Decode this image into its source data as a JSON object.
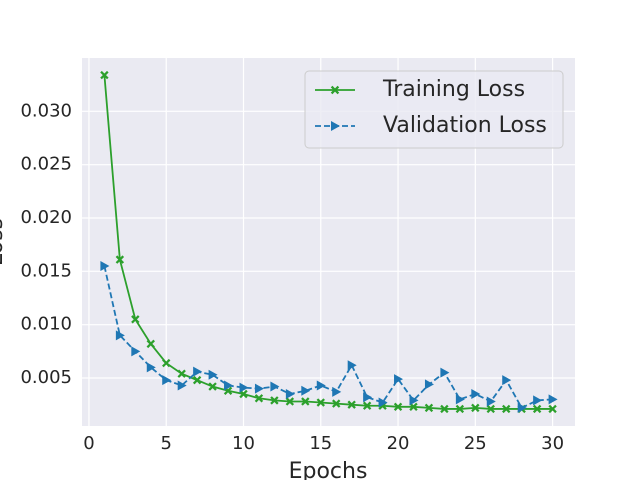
{
  "chart_data": {
    "type": "line",
    "xlabel": "Epochs",
    "ylabel": "Loss",
    "x": [
      1,
      2,
      3,
      4,
      5,
      6,
      7,
      8,
      9,
      10,
      11,
      12,
      13,
      14,
      15,
      16,
      17,
      18,
      19,
      20,
      21,
      22,
      23,
      24,
      25,
      26,
      27,
      28,
      29,
      30
    ],
    "series": [
      {
        "name": "Training Loss",
        "color": "#2ca02c",
        "linestyle": "solid",
        "marker": "X",
        "values": [
          0.0334,
          0.0161,
          0.0105,
          0.0082,
          0.0064,
          0.0054,
          0.0048,
          0.0042,
          0.0038,
          0.0035,
          0.0031,
          0.0029,
          0.0028,
          0.0028,
          0.0027,
          0.0026,
          0.0025,
          0.0024,
          0.0024,
          0.0023,
          0.0023,
          0.0022,
          0.0021,
          0.0021,
          0.0022,
          0.0021,
          0.0021,
          0.0021,
          0.0021,
          0.0021
        ]
      },
      {
        "name": "Validation Loss",
        "color": "#1f77b4",
        "linestyle": "dashed",
        "marker": "triangle-right",
        "values": [
          0.0155,
          0.009,
          0.0075,
          0.006,
          0.0048,
          0.0043,
          0.0056,
          0.0053,
          0.0043,
          0.0041,
          0.004,
          0.0042,
          0.0035,
          0.0038,
          0.0043,
          0.0037,
          0.0062,
          0.0032,
          0.0027,
          0.0049,
          0.0029,
          0.0044,
          0.0055,
          0.003,
          0.0035,
          0.0028,
          0.0048,
          0.0022,
          0.0029,
          0.003
        ]
      }
    ],
    "xlim": [
      -0.45,
      31.45
    ],
    "xticks": [
      0,
      5,
      10,
      15,
      20,
      25,
      30
    ],
    "ylim": [
      0.0005,
      0.035
    ],
    "yticks": [
      0.005,
      {
        "value": 0.01,
        "label": "0.010"
      },
      0.015,
      {
        "value": 0.02,
        "label": "0.020"
      },
      0.025,
      {
        "value": 0.03,
        "label": "0.030"
      }
    ],
    "grid": true,
    "legend": "upper right"
  }
}
